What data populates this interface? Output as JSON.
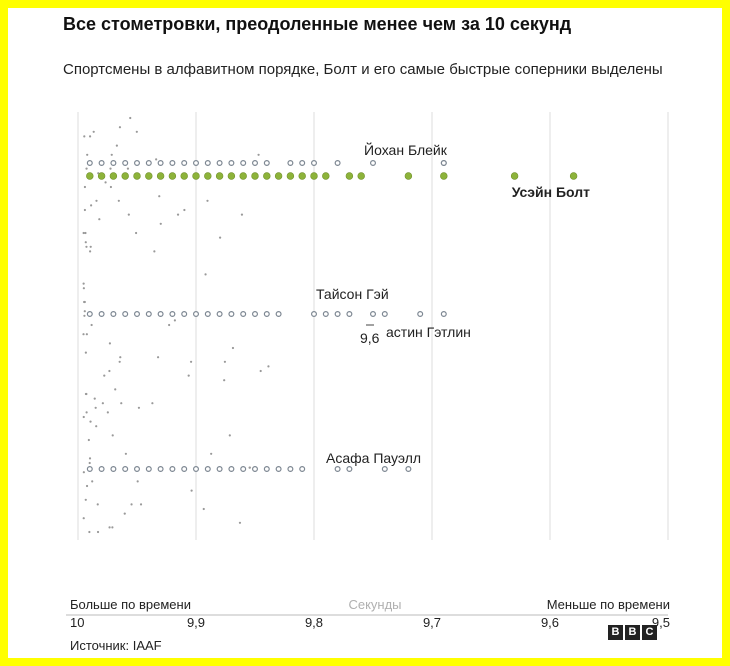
{
  "header": {
    "title": "Все стометровки, преодоленные менее чем за 10 секунд",
    "subtitle": "Спортсмены в алфавитном порядке, Болт и его самые быстрые соперники выделены"
  },
  "footer": {
    "source": "Источник: IAAF",
    "logo": [
      "B",
      "B",
      "C"
    ]
  },
  "colors": {
    "highlight": "#8db33a",
    "dot": "#7d8792",
    "gray": "#999999",
    "grid": "#dcdcdc",
    "background": "#ffff00"
  },
  "chart_data": {
    "type": "scatter",
    "x_axis": {
      "label": "Секунды",
      "left_label": "Больше по времени",
      "right_label": "Меньше по времени",
      "range": [
        10,
        9.5
      ],
      "ticks": [
        "10",
        "9,9",
        "9,8",
        "9,7",
        "9,6",
        "9,5"
      ]
    },
    "athletes": [
      {
        "name": "Йохан Блейк",
        "highlight": false,
        "times": [
          9.99,
          9.98,
          9.97,
          9.96,
          9.95,
          9.94,
          9.93,
          9.92,
          9.91,
          9.9,
          9.89,
          9.88,
          9.87,
          9.86,
          9.85,
          9.84,
          9.82,
          9.81,
          9.8,
          9.78,
          9.75,
          9.69,
          9.69
        ]
      },
      {
        "name": "Усэйн Болт",
        "highlight": true,
        "times": [
          9.99,
          9.98,
          9.97,
          9.96,
          9.95,
          9.94,
          9.93,
          9.92,
          9.91,
          9.9,
          9.89,
          9.88,
          9.87,
          9.86,
          9.85,
          9.84,
          9.83,
          9.82,
          9.81,
          9.8,
          9.79,
          9.77,
          9.76,
          9.72,
          9.69,
          9.63,
          9.58
        ]
      },
      {
        "name": "Тайсон Гэй",
        "highlight": false,
        "times": [
          9.99,
          9.98,
          9.97,
          9.96,
          9.95,
          9.94,
          9.93,
          9.92,
          9.91,
          9.9,
          9.89,
          9.88,
          9.87,
          9.86,
          9.85,
          9.84,
          9.83,
          9.8,
          9.79,
          9.78,
          9.77,
          9.75,
          9.74,
          9.71,
          9.69
        ]
      },
      {
        "name": "Джастин Гэтлин",
        "highlight": false,
        "label_shown": "астин Гэтлин",
        "times": []
      },
      {
        "name": "Асафа Пауэлл",
        "highlight": false,
        "times": [
          9.99,
          9.98,
          9.97,
          9.96,
          9.95,
          9.94,
          9.93,
          9.92,
          9.91,
          9.9,
          9.89,
          9.88,
          9.87,
          9.86,
          9.85,
          9.84,
          9.83,
          9.82,
          9.81,
          9.78,
          9.77,
          9.74,
          9.72
        ]
      }
    ],
    "annotations": [
      {
        "text": "9,6",
        "note": "overlapping tooltip label near Джастин Гэтлин"
      }
    ]
  }
}
